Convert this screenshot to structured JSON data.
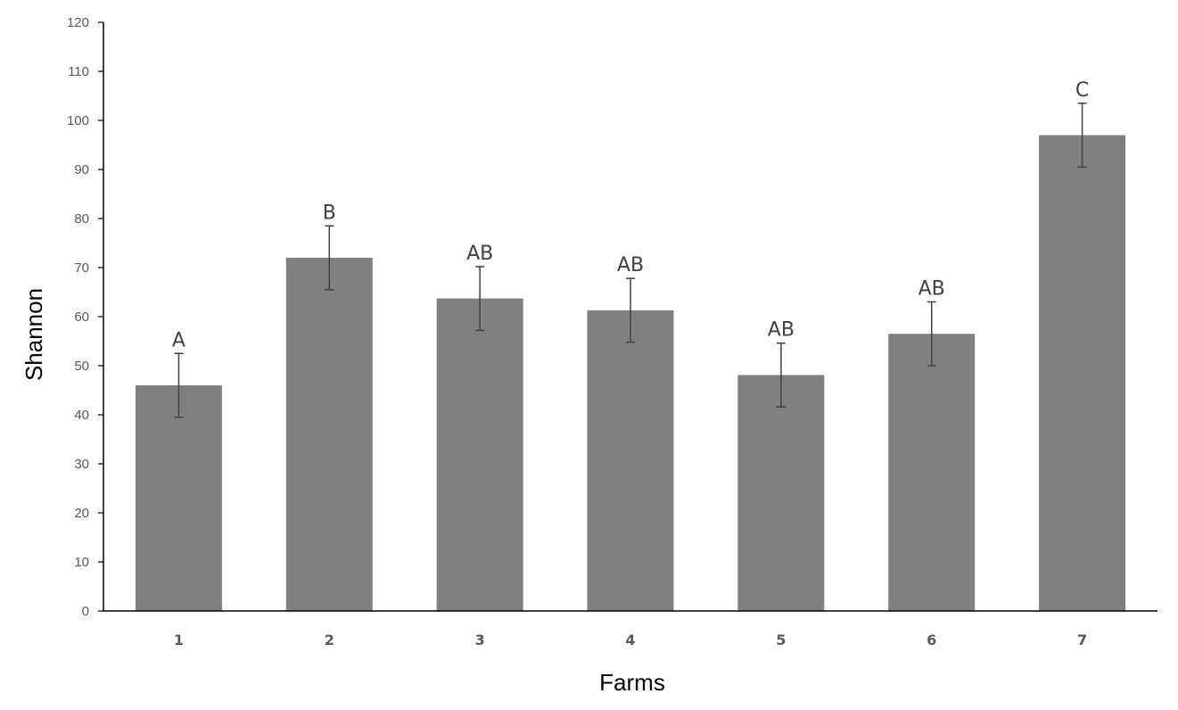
{
  "chart_data": {
    "type": "bar",
    "categories": [
      "1",
      "2",
      "3",
      "4",
      "5",
      "6",
      "7"
    ],
    "values": [
      46,
      72,
      63.7,
      61.3,
      48.1,
      56.5,
      97
    ],
    "error_upper": [
      6.5,
      6.5,
      6.5,
      6.5,
      6.5,
      6.5,
      6.5
    ],
    "error_lower": [
      6.5,
      6.5,
      6.5,
      6.5,
      6.5,
      6.5,
      6.5
    ],
    "annotations": [
      "A",
      "B",
      "AB",
      "AB",
      "AB",
      "AB",
      "C"
    ],
    "xlabel": "Farms",
    "ylabel": "Shannon",
    "ylim": [
      0,
      120
    ],
    "yticks": [
      0,
      10,
      20,
      30,
      40,
      50,
      60,
      70,
      80,
      90,
      100,
      110,
      120
    ],
    "grid": false,
    "colors": {
      "bar": "#808080",
      "axis": "#000000",
      "error_bar": "#404040"
    }
  }
}
